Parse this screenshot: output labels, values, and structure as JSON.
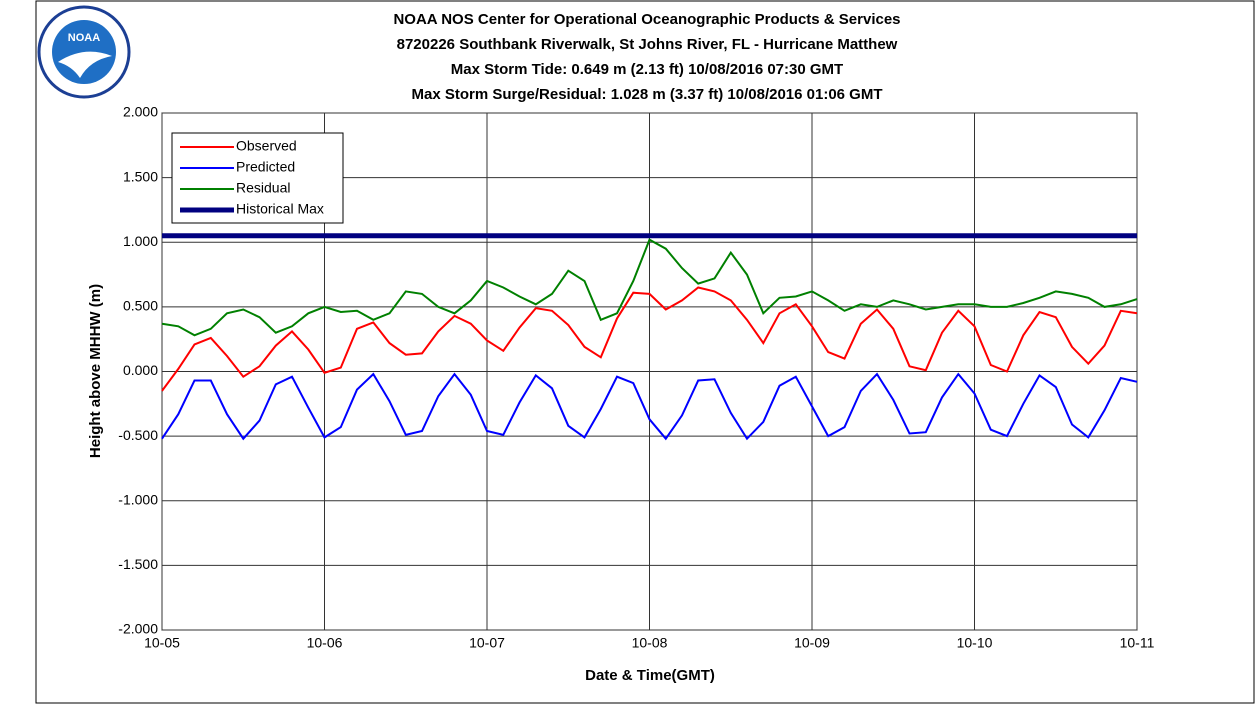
{
  "chart_data": {
    "type": "line",
    "title": [
      "NOAA NOS Center for Operational Oceanographic Products & Services",
      "8720226 Southbank Riverwalk, St Johns River, FL - Hurricane Matthew",
      "Max Storm Tide: 0.649 m (2.13 ft) 10/08/2016 07:30 GMT",
      "Max Storm Surge/Residual: 1.028 m (3.37 ft) 10/08/2016 01:06 GMT"
    ],
    "logo_text": "NOAA",
    "xlabel": "Date & Time(GMT)",
    "ylabel": "Height above MHHW (m)",
    "x": [
      0,
      0.1,
      0.2,
      0.3,
      0.4,
      0.5,
      0.6,
      0.7,
      0.8,
      0.9,
      1,
      1.1,
      1.2,
      1.3,
      1.4,
      1.5,
      1.6,
      1.7,
      1.8,
      1.9,
      2,
      2.1,
      2.2,
      2.3,
      2.4,
      2.5,
      2.6,
      2.7,
      2.8,
      2.9,
      3,
      3.1,
      3.2,
      3.3,
      3.4,
      3.5,
      3.6,
      3.7,
      3.8,
      3.9,
      4,
      4.1,
      4.2,
      4.3,
      4.4,
      4.5,
      4.6,
      4.7,
      4.8,
      4.9,
      5,
      5.1,
      5.2,
      5.3,
      5.4,
      5.5,
      5.6,
      5.7,
      5.8,
      5.9,
      6
    ],
    "series": [
      {
        "name": "Observed",
        "color": "#ff0000",
        "values": [
          -0.15,
          0.02,
          0.21,
          0.26,
          0.12,
          -0.04,
          0.04,
          0.2,
          0.31,
          0.17,
          -0.01,
          0.03,
          0.33,
          0.38,
          0.22,
          0.13,
          0.14,
          0.31,
          0.43,
          0.37,
          0.24,
          0.16,
          0.34,
          0.49,
          0.47,
          0.36,
          0.19,
          0.11,
          0.41,
          0.61,
          0.6,
          0.48,
          0.55,
          0.65,
          0.62,
          0.55,
          0.4,
          0.22,
          0.45,
          0.52,
          0.35,
          0.15,
          0.1,
          0.37,
          0.48,
          0.33,
          0.04,
          0.01,
          0.3,
          0.47,
          0.35,
          0.05,
          0,
          0.28,
          0.46,
          0.42,
          0.19,
          0.06,
          0.2,
          0.47,
          0.45
        ]
      },
      {
        "name": "Predicted",
        "color": "#0000ff",
        "values": [
          -0.52,
          -0.33,
          -0.07,
          -0.07,
          -0.33,
          -0.52,
          -0.38,
          -0.1,
          -0.04,
          -0.28,
          -0.51,
          -0.43,
          -0.14,
          -0.02,
          -0.23,
          -0.49,
          -0.46,
          -0.19,
          -0.02,
          -0.18,
          -0.46,
          -0.49,
          -0.24,
          -0.03,
          -0.13,
          -0.42,
          -0.51,
          -0.29,
          -0.04,
          -0.09,
          -0.37,
          -0.52,
          -0.34,
          -0.07,
          -0.06,
          -0.32,
          -0.52,
          -0.39,
          -0.11,
          -0.04,
          -0.27,
          -0.5,
          -0.43,
          -0.15,
          -0.02,
          -0.22,
          -0.48,
          -0.47,
          -0.2,
          -0.02,
          -0.17,
          -0.45,
          -0.5,
          -0.25,
          -0.03,
          -0.12,
          -0.41,
          -0.51,
          -0.3,
          -0.05,
          -0.08
        ]
      },
      {
        "name": "Residual",
        "color": "#008000",
        "values": [
          0.37,
          0.35,
          0.28,
          0.33,
          0.45,
          0.48,
          0.42,
          0.3,
          0.35,
          0.45,
          0.5,
          0.46,
          0.47,
          0.4,
          0.45,
          0.62,
          0.6,
          0.5,
          0.45,
          0.55,
          0.7,
          0.65,
          0.58,
          0.52,
          0.6,
          0.78,
          0.7,
          0.4,
          0.45,
          0.7,
          1.02,
          0.95,
          0.8,
          0.68,
          0.72,
          0.92,
          0.75,
          0.45,
          0.57,
          0.58,
          0.62,
          0.55,
          0.47,
          0.52,
          0.5,
          0.55,
          0.52,
          0.48,
          0.5,
          0.52,
          0.52,
          0.5,
          0.5,
          0.53,
          0.57,
          0.62,
          0.6,
          0.57,
          0.5,
          0.52,
          0.56
        ]
      }
    ],
    "reference_line": {
      "name": "Historical Max",
      "color": "#000080",
      "value": 1.05
    },
    "xlim": [
      0,
      6
    ],
    "xticks": [
      {
        "value": 0,
        "label": "10-05"
      },
      {
        "value": 1,
        "label": "10-06"
      },
      {
        "value": 2,
        "label": "10-07"
      },
      {
        "value": 3,
        "label": "10-08"
      },
      {
        "value": 4,
        "label": "10-09"
      },
      {
        "value": 5,
        "label": "10-10"
      },
      {
        "value": 6,
        "label": "10-11"
      }
    ],
    "ylim": [
      -2,
      2
    ],
    "yticks": [
      {
        "value": -2,
        "label": "-2.000"
      },
      {
        "value": -1.5,
        "label": "-1.500"
      },
      {
        "value": -1,
        "label": "-1.000"
      },
      {
        "value": -0.5,
        "label": "-0.500"
      },
      {
        "value": 0,
        "label": "0.000"
      },
      {
        "value": 0.5,
        "label": "0.500"
      },
      {
        "value": 1,
        "label": "1.000"
      },
      {
        "value": 1.5,
        "label": "1.500"
      },
      {
        "value": 2,
        "label": "2.000"
      }
    ],
    "grid": true,
    "legend": "upper left"
  }
}
